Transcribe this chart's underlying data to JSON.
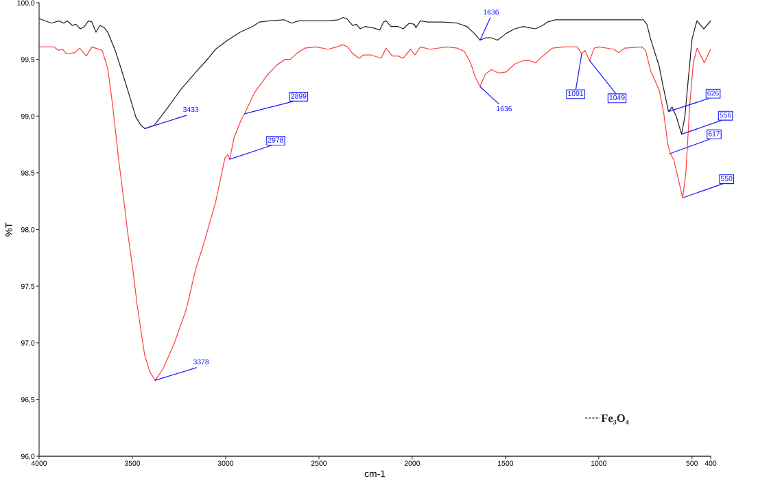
{
  "chart_data": {
    "type": "line",
    "xlabel": "cm-1",
    "ylabel": "%T",
    "xlim": [
      4000,
      400
    ],
    "xticks": [
      4000,
      3500,
      3000,
      2500,
      2000,
      1500,
      1000,
      500,
      400
    ],
    "ylim": [
      96,
      100
    ],
    "yticks": [
      {
        "value": 96,
        "label": "96,0"
      },
      {
        "value": 96.5,
        "label": "96,5"
      },
      {
        "value": 97,
        "label": "97,0"
      },
      {
        "value": 97.5,
        "label": "97,5"
      },
      {
        "value": 98,
        "label": "98,0"
      },
      {
        "value": 98.5,
        "label": "98,5"
      },
      {
        "value": 99,
        "label": "99,0"
      },
      {
        "value": 99.5,
        "label": "99,5"
      },
      {
        "value": 100,
        "label": "100,0"
      }
    ],
    "legend": "bottom right",
    "series": [
      {
        "name": "Fe₃O₄",
        "color": "#222222",
        "x": [
          4000,
          3934,
          3894,
          3868,
          3849,
          3822,
          3803,
          3779,
          3757,
          3735,
          3717,
          3695,
          3674,
          3651,
          3632,
          3592,
          3553,
          3514,
          3481,
          3455,
          3433,
          3382,
          3317,
          3238,
          3159,
          3093,
          3054,
          2989,
          2923,
          2857,
          2818,
          2765,
          2687,
          2647,
          2608,
          2503,
          2450,
          2397,
          2371,
          2351,
          2319,
          2299,
          2279,
          2253,
          2213,
          2174,
          2154,
          2140,
          2114,
          2075,
          2048,
          2016,
          1989,
          1980,
          1956,
          1917,
          1838,
          1759,
          1707,
          1667,
          1636,
          1608,
          1575,
          1542,
          1496,
          1450,
          1404,
          1372,
          1339,
          1300,
          1274,
          1234,
          1090,
          893,
          761,
          742,
          722,
          676,
          657,
          626,
          607,
          585,
          556,
          538,
          518,
          500,
          474,
          437,
          400
        ],
        "values": [
          99.86,
          99.82,
          99.84,
          99.82,
          99.84,
          99.8,
          99.81,
          99.77,
          99.79,
          99.84,
          99.83,
          99.74,
          99.8,
          99.78,
          99.74,
          99.58,
          99.38,
          99.17,
          98.99,
          98.92,
          98.89,
          98.92,
          99.06,
          99.24,
          99.39,
          99.51,
          99.59,
          99.67,
          99.74,
          99.79,
          99.83,
          99.84,
          99.85,
          99.82,
          99.84,
          99.84,
          99.84,
          99.85,
          99.87,
          99.86,
          99.8,
          99.81,
          99.77,
          99.79,
          99.78,
          99.76,
          99.83,
          99.84,
          99.79,
          99.79,
          99.77,
          99.82,
          99.81,
          99.78,
          99.84,
          99.83,
          99.83,
          99.82,
          99.79,
          99.73,
          99.67,
          99.69,
          99.69,
          99.67,
          99.73,
          99.77,
          99.79,
          99.78,
          99.77,
          99.8,
          99.83,
          99.85,
          99.85,
          99.85,
          99.85,
          99.81,
          99.68,
          99.44,
          99.28,
          99.04,
          99.08,
          99.0,
          98.84,
          99.0,
          99.36,
          99.68,
          99.84,
          99.77,
          99.84
        ]
      },
      {
        "color": "#ff4040",
        "x": [
          4000,
          3921,
          3894,
          3875,
          3853,
          3809,
          3783,
          3747,
          3717,
          3662,
          3632,
          3606,
          3573,
          3540,
          3524,
          3500,
          3474,
          3435,
          3408,
          3378,
          3336,
          3277,
          3212,
          3159,
          3120,
          3054,
          3004,
          2989,
          2978,
          2955,
          2916,
          2899,
          2844,
          2778,
          2726,
          2680,
          2654,
          2621,
          2575,
          2516,
          2450,
          2404,
          2371,
          2346,
          2319,
          2283,
          2261,
          2221,
          2167,
          2140,
          2107,
          2075,
          2048,
          2009,
          1985,
          1956,
          1904,
          1812,
          1759,
          1720,
          1687,
          1661,
          1636,
          1608,
          1575,
          1537,
          1496,
          1450,
          1404,
          1372,
          1339,
          1300,
          1248,
          1182,
          1116,
          1091,
          1074,
          1049,
          1024,
          998,
          919,
          893,
          860,
          768,
          749,
          722,
          676,
          651,
          630,
          617,
          597,
          550,
          533,
          512,
          493,
          473,
          434,
          400
        ],
        "values": [
          99.61,
          99.61,
          99.58,
          99.59,
          99.55,
          99.56,
          99.6,
          99.53,
          99.61,
          99.58,
          99.42,
          99.1,
          98.61,
          98.18,
          97.96,
          97.68,
          97.33,
          96.9,
          96.75,
          96.67,
          96.77,
          96.99,
          97.29,
          97.66,
          97.86,
          98.24,
          98.63,
          98.66,
          98.62,
          98.81,
          98.97,
          99.02,
          99.21,
          99.36,
          99.45,
          99.5,
          99.5,
          99.55,
          99.6,
          99.61,
          99.59,
          99.61,
          99.63,
          99.61,
          99.55,
          99.51,
          99.54,
          99.54,
          99.51,
          99.6,
          99.53,
          99.53,
          99.51,
          99.59,
          99.54,
          99.61,
          99.59,
          99.61,
          99.6,
          99.57,
          99.47,
          99.34,
          99.26,
          99.37,
          99.41,
          99.38,
          99.39,
          99.46,
          99.49,
          99.49,
          99.47,
          99.53,
          99.6,
          99.61,
          99.61,
          99.55,
          99.58,
          99.49,
          99.6,
          99.61,
          99.59,
          99.56,
          99.6,
          99.61,
          99.58,
          99.4,
          99.23,
          99.02,
          98.76,
          98.67,
          98.61,
          98.28,
          98.5,
          99.1,
          99.47,
          99.6,
          99.47,
          99.59
        ]
      }
    ],
    "annotations": [
      {
        "text": "3433",
        "x": 3433,
        "y": 98.89
      },
      {
        "text": "3378",
        "x": 3378,
        "y": 96.67
      },
      {
        "text": "2978",
        "x": 2978,
        "y": 98.62
      },
      {
        "text": "2899",
        "x": 2899,
        "y": 99.02
      },
      {
        "text": "1636",
        "x": 1636,
        "y": 99.67
      },
      {
        "text": "1636",
        "x": 1636,
        "y": 99.26
      },
      {
        "text": "1091",
        "x": 1091,
        "y": 99.55
      },
      {
        "text": "1049",
        "x": 1049,
        "y": 99.49
      },
      {
        "text": "626",
        "x": 626,
        "y": 99.04
      },
      {
        "text": "556",
        "x": 556,
        "y": 98.84
      },
      {
        "text": "617",
        "x": 617,
        "y": 98.67
      },
      {
        "text": "550",
        "x": 550,
        "y": 98.28
      }
    ]
  }
}
